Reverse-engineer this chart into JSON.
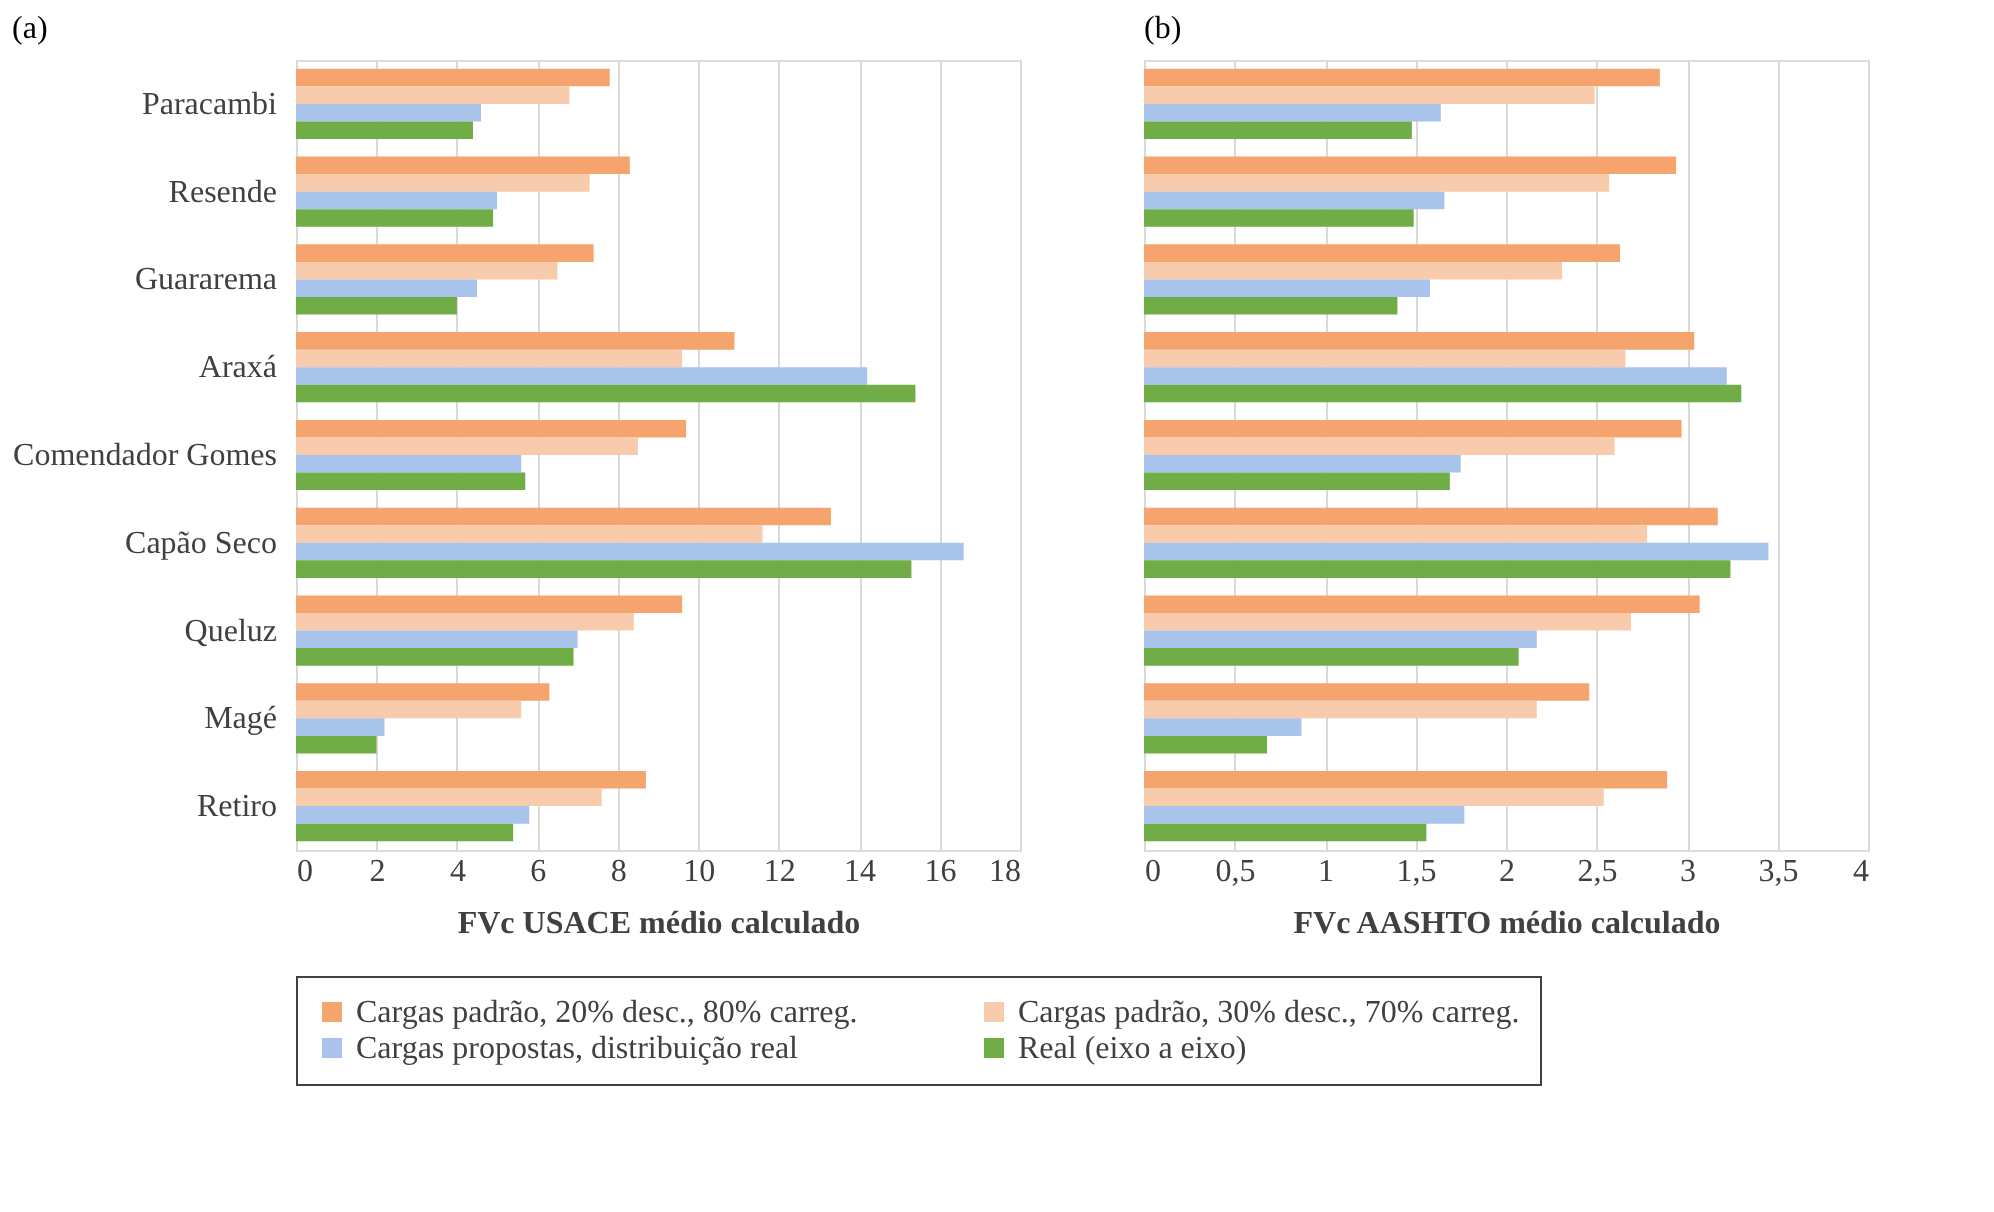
{
  "chart_data": [
    {
      "type": "bar",
      "orientation": "horizontal",
      "title": "(a)",
      "xlabel": "FVc USACE médio calculado",
      "categories": [
        "Paracambi",
        "Resende",
        "Guararema",
        "Araxá",
        "Comendador Gomes",
        "Capão Seco",
        "Queluz",
        "Magé",
        "Retiro"
      ],
      "series": [
        {
          "name": "Cargas padrão, 20% desc., 80% carreg.",
          "color": "#f4a46c",
          "values": [
            7.8,
            8.3,
            7.4,
            10.9,
            9.7,
            13.3,
            9.6,
            6.3,
            8.7
          ]
        },
        {
          "name": "Cargas padrão, 30% desc., 70% carreg.",
          "color": "#f8cbad",
          "values": [
            6.8,
            7.3,
            6.5,
            9.6,
            8.5,
            11.6,
            8.4,
            5.6,
            7.6
          ]
        },
        {
          "name": "Cargas propostas, distribuição real",
          "color": "#a9c4eb",
          "values": [
            4.6,
            5.0,
            4.5,
            14.2,
            5.6,
            16.6,
            7.0,
            2.2,
            5.8
          ]
        },
        {
          "name": "Real (eixo a eixo)",
          "color": "#70ad47",
          "values": [
            4.4,
            4.9,
            4.0,
            15.4,
            5.7,
            15.3,
            6.9,
            2.0,
            5.4
          ]
        }
      ],
      "xlim": [
        0,
        18
      ],
      "xticks": [
        0,
        2,
        4,
        6,
        8,
        10,
        12,
        14,
        16,
        18
      ],
      "grid": "x",
      "legend": "bottom"
    },
    {
      "type": "bar",
      "orientation": "horizontal",
      "title": "(b)",
      "xlabel": "FVc AASHTO médio calculado",
      "categories": [
        "Paracambi",
        "Resende",
        "Guararema",
        "Araxá",
        "Comendador Gomes",
        "Capão Seco",
        "Queluz",
        "Magé",
        "Retiro"
      ],
      "series": [
        {
          "name": "Cargas padrão, 20% desc., 80% carreg.",
          "color": "#f4a46c",
          "values": [
            2.85,
            2.94,
            2.63,
            3.04,
            2.97,
            3.17,
            3.07,
            2.46,
            2.89
          ]
        },
        {
          "name": "Cargas padrão, 30% desc., 70% carreg.",
          "color": "#f8cbad",
          "values": [
            2.49,
            2.57,
            2.31,
            2.66,
            2.6,
            2.78,
            2.69,
            2.17,
            2.54
          ]
        },
        {
          "name": "Cargas propostas, distribuição real",
          "color": "#a9c4eb",
          "values": [
            1.64,
            1.66,
            1.58,
            3.22,
            1.75,
            3.45,
            2.17,
            0.87,
            1.77
          ]
        },
        {
          "name": "Real (eixo a eixo)",
          "color": "#70ad47",
          "values": [
            1.48,
            1.49,
            1.4,
            3.3,
            1.69,
            3.24,
            2.07,
            0.68,
            1.56
          ]
        }
      ],
      "xlim": [
        0,
        4
      ],
      "xticks": [
        0,
        {
          "value": 0.5,
          "label": "0,5"
        },
        1,
        {
          "value": 1.5,
          "label": "1,5"
        },
        2,
        {
          "value": 2.5,
          "label": "2,5"
        },
        3,
        {
          "value": 3.5,
          "label": "3,5"
        },
        4
      ],
      "grid": "x",
      "legend": "bottom",
      "tick_labels": "x"
    }
  ]
}
